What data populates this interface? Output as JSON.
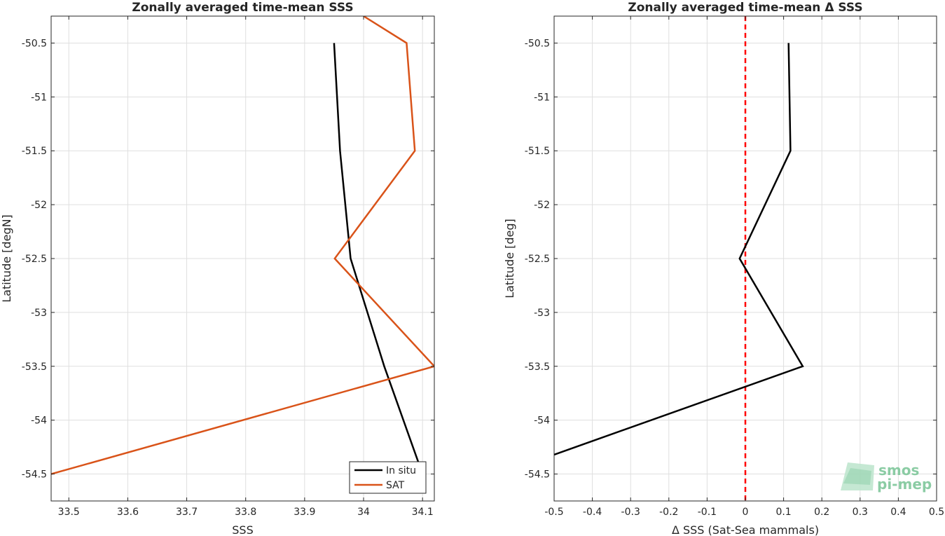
{
  "chart_data": [
    {
      "type": "line",
      "title": "Zonally averaged time-mean SSS",
      "xlabel": "SSS",
      "ylabel": "Latitude [degN]",
      "xlim": [
        33.47,
        34.12
      ],
      "ylim": [
        -54.75,
        -50.25
      ],
      "xticks": [
        33.5,
        33.6,
        33.7,
        33.8,
        33.9,
        34,
        34.1
      ],
      "xtick_labels": [
        "33.5",
        "33.6",
        "33.7",
        "33.8",
        "33.9",
        "34",
        "34.1"
      ],
      "yticks": [
        -50.5,
        -51,
        -51.5,
        -52,
        -52.5,
        -53,
        -53.5,
        -54,
        -54.5
      ],
      "ytick_labels": [
        "-50.5",
        "-51",
        "-51.5",
        "-52",
        "-52.5",
        "-53",
        "-53.5",
        "-54",
        "-54.5"
      ],
      "grid": true,
      "legend_position": "bottom-right",
      "series": [
        {
          "name": "In situ",
          "color": "#000000",
          "x": [
            33.95,
            33.96,
            33.978,
            34.035,
            34.1
          ],
          "y": [
            -50.5,
            -51.5,
            -52.5,
            -53.5,
            -54.5
          ]
        },
        {
          "name": "SAT",
          "color": "#d95319",
          "x": [
            34.0,
            34.073,
            34.087,
            33.951,
            34.12,
            33.47
          ],
          "y": [
            -50.25,
            -50.5,
            -51.5,
            -52.5,
            -53.5,
            -54.5
          ]
        }
      ]
    },
    {
      "type": "line",
      "title": "Zonally averaged time-mean Δ SSS",
      "xlabel": "Δ SSS (Sat-Sea mammals)",
      "ylabel": "Latitude [deg]",
      "xlim": [
        -0.5,
        0.5
      ],
      "ylim": [
        -54.75,
        -50.25
      ],
      "xticks": [
        -0.5,
        -0.4,
        -0.3,
        -0.2,
        -0.1,
        0,
        0.1,
        0.2,
        0.3,
        0.4,
        0.5
      ],
      "xtick_labels": [
        "-0.5",
        "-0.4",
        "-0.3",
        "-0.2",
        "-0.1",
        "0",
        "0.1",
        "0.2",
        "0.3",
        "0.4",
        "0.5"
      ],
      "yticks": [
        -50.5,
        -51,
        -51.5,
        -52,
        -52.5,
        -53,
        -53.5,
        -54,
        -54.5
      ],
      "ytick_labels": [
        "-50.5",
        "-51",
        "-51.5",
        "-52",
        "-52.5",
        "-53",
        "-53.5",
        "-54",
        "-54.5"
      ],
      "grid": true,
      "reference_line": {
        "x": 0,
        "color": "#ff0000",
        "style": "dashed"
      },
      "series": [
        {
          "color": "#000000",
          "x": [
            0.113,
            0.118,
            -0.015,
            0.15,
            -0.5
          ],
          "y": [
            -50.5,
            -51.5,
            -52.5,
            -53.5,
            -54.32
          ]
        }
      ]
    }
  ],
  "logo": {
    "line1": "smos",
    "line2": "pi-mep",
    "color": "#7fc79b"
  }
}
